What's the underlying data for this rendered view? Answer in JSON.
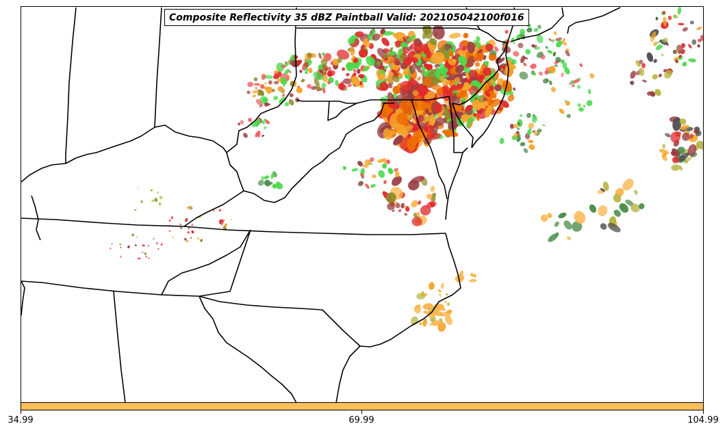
{
  "title": "Composite Reflectivity 35 dBZ Paintball Valid: 202105042100f016",
  "colorbar": {
    "color": "#fdbf5a",
    "ticks": [
      "34.99",
      "69.99",
      "104.99"
    ]
  },
  "paintball_colors": {
    "orange": "#f5a52a",
    "dark_orange": "#ee7000",
    "red": "#e0292b",
    "light_red": "#f25b5e",
    "brown": "#9b3e44",
    "olive": "#8e8a2a",
    "light_olive": "#b8b545",
    "green": "#4cd94c",
    "dark_green": "#4f8f4f",
    "gray": "#4f4f4f",
    "light_orange": "#fbb750"
  },
  "icons": {
    "map": "state-boundary-map"
  }
}
